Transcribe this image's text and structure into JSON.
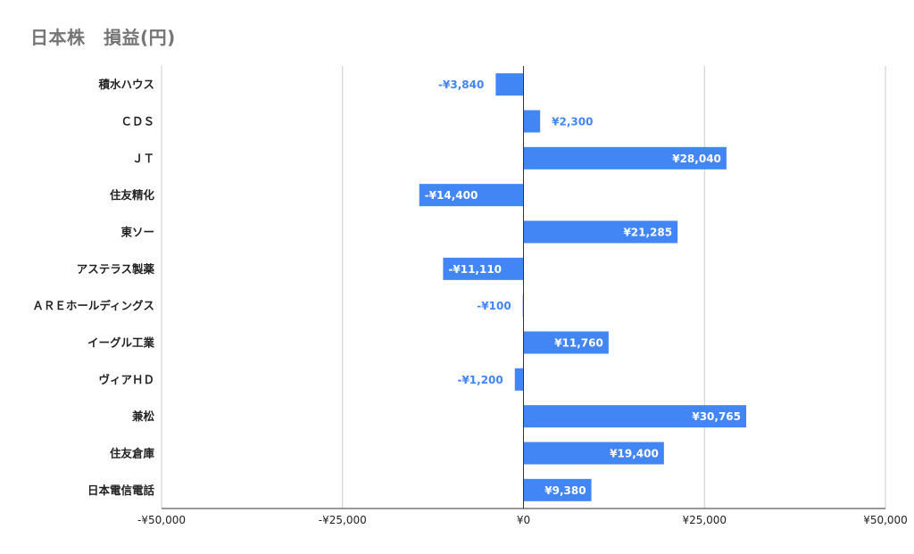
{
  "chart_data": {
    "type": "bar",
    "orientation": "horizontal",
    "title": "日本株　損益(円)",
    "xlabel": "",
    "ylabel": "",
    "categories": [
      "積水ハウス",
      "ＣＤＳ",
      "ＪＴ",
      "住友精化",
      "東ソー",
      "アステラス製薬",
      "ＡＲＥホールディングス",
      "イーグル工業",
      "ヴィアＨＤ",
      "兼松",
      "住友倉庫",
      "日本電信電話"
    ],
    "values": [
      -3840,
      2300,
      28040,
      -14400,
      21285,
      -11110,
      -100,
      11760,
      -1200,
      30765,
      19400,
      9380
    ],
    "value_labels": [
      "-¥3,840",
      "¥2,300",
      "¥28,040",
      "-¥14,400",
      "¥21,285",
      "-¥11,110",
      "-¥100",
      "¥11,760",
      "-¥1,200",
      "¥30,765",
      "¥19,400",
      "¥9,380"
    ],
    "xlim": [
      -50000,
      50000
    ],
    "xticks": [
      -50000,
      -25000,
      0,
      25000,
      50000
    ],
    "xtick_labels": [
      "-¥50,000",
      "-¥25,000",
      "¥0",
      "¥25,000",
      "¥50,000"
    ],
    "grid": true,
    "legend": "none",
    "bar_color": "#4285f4"
  }
}
